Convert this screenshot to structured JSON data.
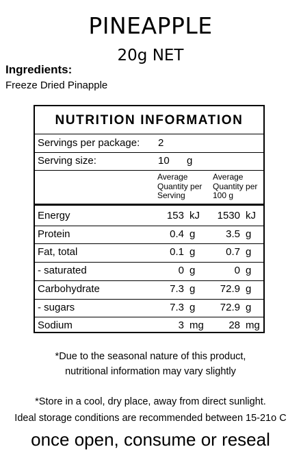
{
  "title": "PINEAPPLE",
  "net": "20g NET",
  "ingredients_heading": "Ingredients:",
  "ingredients_text": "Freeze Dried Pinapple",
  "panel": {
    "heading": "NUTRITION INFORMATION",
    "servings_label": "Servings per package:",
    "servings_value": "2",
    "size_label": "Serving size:",
    "size_value": "10",
    "size_unit": "g",
    "col1_header": [
      "Average",
      "Quantity per",
      "Serving"
    ],
    "col2_header": [
      "Average",
      "Quantity per",
      "100 g"
    ],
    "rows": [
      {
        "name": "Energy",
        "v1": "153",
        "u1": "kJ",
        "v2": "1530",
        "u2": "kJ"
      },
      {
        "name": "Protein",
        "v1": "0.4",
        "u1": "g",
        "v2": "3.5",
        "u2": "g"
      },
      {
        "name": "Fat, total",
        "v1": "0.1",
        "u1": "g",
        "v2": "0.7",
        "u2": "g"
      },
      {
        "name": "- saturated",
        "v1": "0",
        "u1": "g",
        "v2": "0",
        "u2": "g"
      },
      {
        "name": "Carbohydrate",
        "v1": "7.3",
        "u1": "g",
        "v2": "72.9",
        "u2": "g"
      },
      {
        "name": "- sugars",
        "v1": "7.3",
        "u1": "g",
        "v2": "72.9",
        "u2": "g"
      },
      {
        "name": "Sodium",
        "v1": "3",
        "u1": "mg",
        "v2": "28",
        "u2": "mg"
      }
    ]
  },
  "notes": {
    "seasonal_1": "*Due to the seasonal nature of this product,",
    "seasonal_2": "nutritional information may vary slightly",
    "storage_1": "*Store in a cool, dry place, away from direct sunlight.",
    "storage_2": "Ideal storage conditions are recommended between 15-21o C",
    "open": "once open, consume or reseal"
  }
}
